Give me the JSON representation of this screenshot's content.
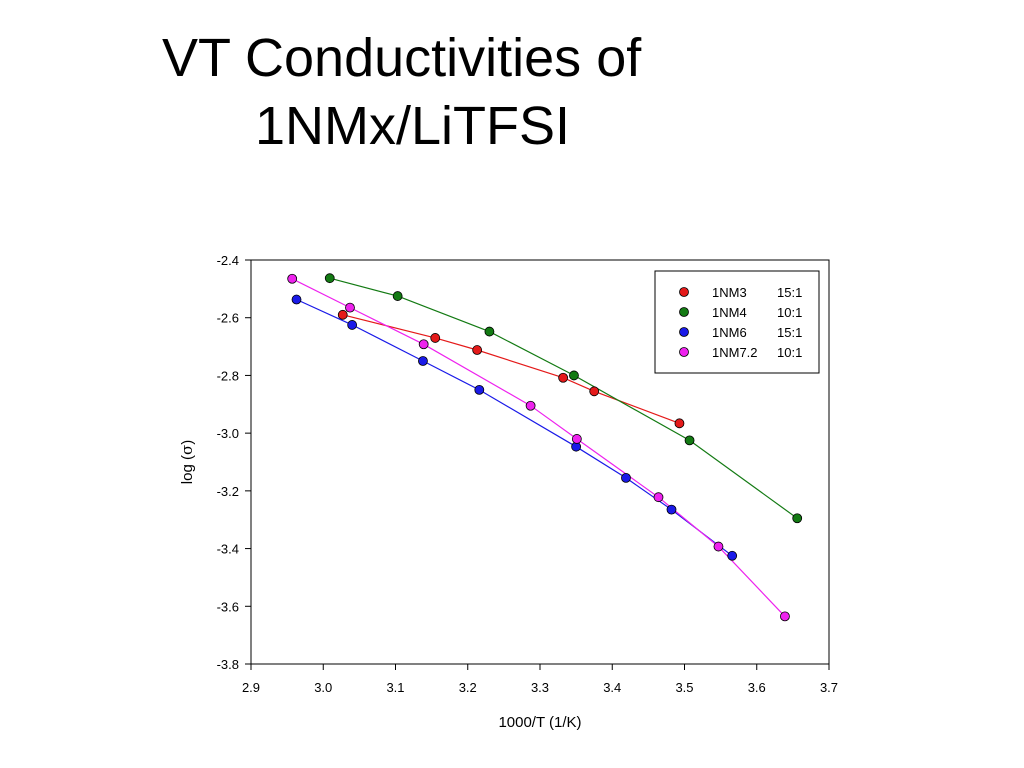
{
  "slide": {
    "title_line1": "VT Conductivities of",
    "title_line2": "1NMx/LiTFSI"
  },
  "chart_data": {
    "type": "scatter",
    "title": "",
    "xlabel": "1000/T (1/K)",
    "ylabel_prefix": "log (",
    "ylabel_symbol": "σ",
    "ylabel_suffix": ")",
    "xlim": [
      2.9,
      3.7
    ],
    "ylim": [
      -3.8,
      -2.4
    ],
    "xticks": [
      2.9,
      3.0,
      3.1,
      3.2,
      3.3,
      3.4,
      3.5,
      3.6,
      3.7
    ],
    "xtick_labels": [
      "2.9",
      "3.0",
      "3.1",
      "3.2",
      "3.3",
      "3.4",
      "3.5",
      "3.6",
      "3.7"
    ],
    "yticks": [
      -2.4,
      -2.6,
      -2.8,
      -3.0,
      -3.2,
      -3.4,
      -3.6,
      -3.8
    ],
    "ytick_labels": [
      "-2.4",
      "-2.6",
      "-2.8",
      "-3.0",
      "-3.2",
      "-3.4",
      "-3.6",
      "-3.8"
    ],
    "grid": false,
    "legend_position": "top-right",
    "series": [
      {
        "name": "1NM3",
        "ratio": "15:1",
        "color": "#e41a1a",
        "points": [
          [
            3.027,
            -2.59
          ],
          [
            3.155,
            -2.67
          ],
          [
            3.213,
            -2.712
          ],
          [
            3.332,
            -2.808
          ],
          [
            3.375,
            -2.855
          ],
          [
            3.493,
            -2.966
          ]
        ]
      },
      {
        "name": "1NM4",
        "ratio": "10:1",
        "color": "#137a13",
        "points": [
          [
            3.009,
            -2.463
          ],
          [
            3.103,
            -2.525
          ],
          [
            3.23,
            -2.648
          ],
          [
            3.347,
            -2.8
          ],
          [
            3.507,
            -3.025
          ],
          [
            3.656,
            -3.295
          ]
        ]
      },
      {
        "name": "1NM6",
        "ratio": "15:1",
        "color": "#1a1ae8",
        "points": [
          [
            2.963,
            -2.537
          ],
          [
            3.04,
            -2.625
          ],
          [
            3.138,
            -2.75
          ],
          [
            3.216,
            -2.85
          ],
          [
            3.35,
            -3.047
          ],
          [
            3.419,
            -3.155
          ],
          [
            3.482,
            -3.265
          ],
          [
            3.566,
            -3.425
          ]
        ]
      },
      {
        "name": "1NM7.2",
        "ratio": "10:1",
        "color": "#ee22ee",
        "points": [
          [
            2.957,
            -2.465
          ],
          [
            3.037,
            -2.565
          ],
          [
            3.139,
            -2.692
          ],
          [
            3.287,
            -2.905
          ],
          [
            3.351,
            -3.02
          ],
          [
            3.464,
            -3.222
          ],
          [
            3.547,
            -3.393
          ],
          [
            3.639,
            -3.635
          ]
        ]
      }
    ]
  }
}
